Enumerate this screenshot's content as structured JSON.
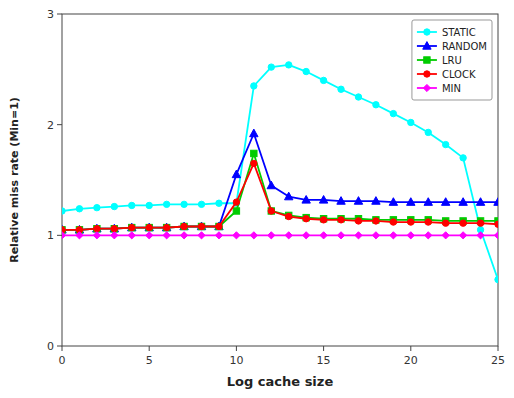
{
  "chart_data": {
    "type": "line",
    "xlabel": "Log cache size",
    "ylabel": "Relative miss rate (Min=1)",
    "x": [
      0,
      1,
      2,
      3,
      4,
      5,
      6,
      7,
      8,
      9,
      10,
      11,
      12,
      13,
      14,
      15,
      16,
      17,
      18,
      19,
      20,
      21,
      22,
      23,
      24,
      25
    ],
    "xlim": [
      0,
      25
    ],
    "ylim": [
      0,
      3
    ],
    "xticks": [
      0,
      5,
      10,
      15,
      20,
      25
    ],
    "yticks": [
      0,
      1,
      2,
      3
    ],
    "grid": false,
    "legend": "upper right",
    "series": [
      {
        "name": "STATIC",
        "color": "#00FFFF",
        "marker": "circle",
        "values": [
          1.22,
          1.24,
          1.25,
          1.26,
          1.27,
          1.27,
          1.28,
          1.28,
          1.28,
          1.29,
          1.29,
          2.35,
          2.52,
          2.54,
          2.48,
          2.4,
          2.32,
          2.25,
          2.18,
          2.1,
          2.02,
          1.93,
          1.82,
          1.7,
          1.05,
          0.6
        ]
      },
      {
        "name": "RANDOM",
        "color": "#0000FF",
        "marker": "triangle",
        "values": [
          1.05,
          1.05,
          1.06,
          1.06,
          1.07,
          1.07,
          1.07,
          1.08,
          1.08,
          1.08,
          1.55,
          1.92,
          1.45,
          1.35,
          1.32,
          1.32,
          1.31,
          1.31,
          1.31,
          1.3,
          1.3,
          1.3,
          1.3,
          1.3,
          1.3,
          1.3
        ]
      },
      {
        "name": "LRU",
        "color": "#00CC00",
        "marker": "square",
        "values": [
          1.05,
          1.05,
          1.06,
          1.06,
          1.07,
          1.07,
          1.07,
          1.08,
          1.08,
          1.08,
          1.22,
          1.74,
          1.22,
          1.18,
          1.16,
          1.15,
          1.15,
          1.15,
          1.14,
          1.14,
          1.14,
          1.14,
          1.13,
          1.13,
          1.13,
          1.13
        ]
      },
      {
        "name": "CLOCK",
        "color": "#FF0000",
        "marker": "circle",
        "values": [
          1.05,
          1.05,
          1.06,
          1.06,
          1.07,
          1.07,
          1.07,
          1.08,
          1.08,
          1.08,
          1.3,
          1.65,
          1.22,
          1.17,
          1.15,
          1.14,
          1.14,
          1.13,
          1.13,
          1.12,
          1.12,
          1.12,
          1.11,
          1.11,
          1.11,
          1.1
        ]
      },
      {
        "name": "MIN",
        "color": "#FF00FF",
        "marker": "diamond",
        "values": [
          1.0,
          1.0,
          1.0,
          1.0,
          1.0,
          1.0,
          1.0,
          1.0,
          1.0,
          1.0,
          1.0,
          1.0,
          1.0,
          1.0,
          1.0,
          1.0,
          1.0,
          1.0,
          1.0,
          1.0,
          1.0,
          1.0,
          1.0,
          1.0,
          1.0,
          1.0
        ]
      }
    ]
  }
}
